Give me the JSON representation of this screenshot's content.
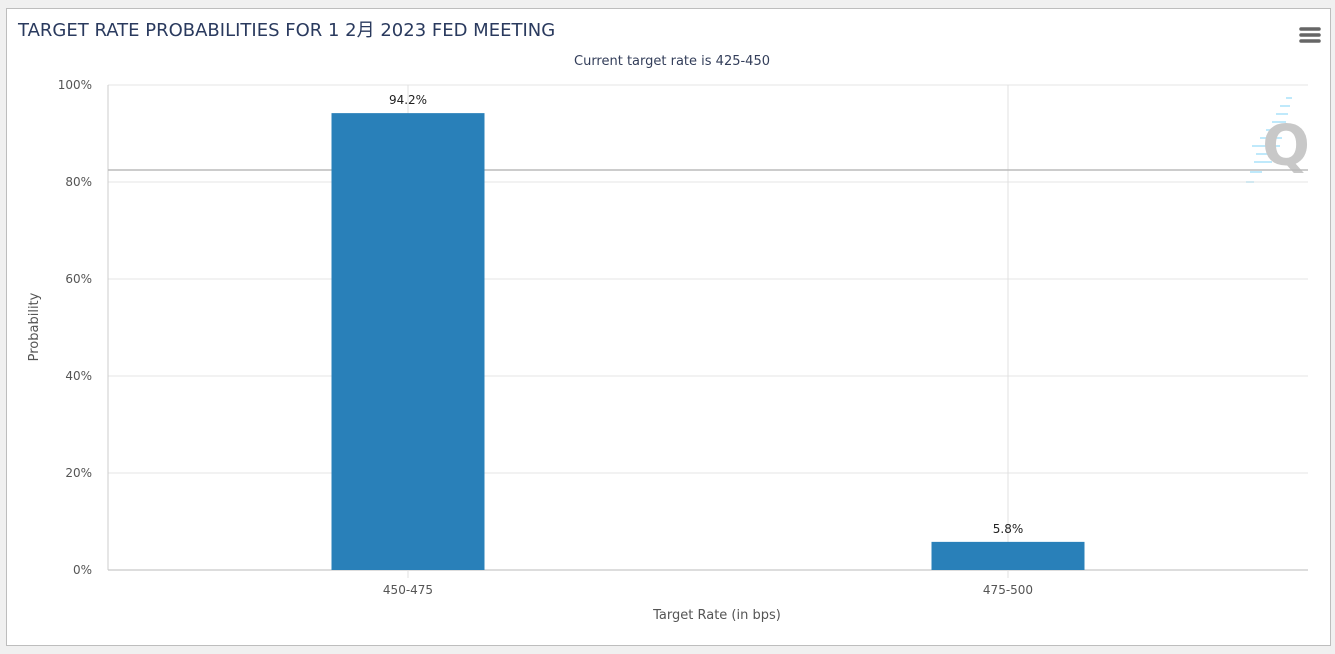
{
  "chart_data": {
    "type": "bar",
    "title": "TARGET RATE PROBABILITIES FOR 1 2月 2023 FED MEETING",
    "subtitle": "Current target rate is 425-450",
    "xlabel": "Target Rate (in bps)",
    "ylabel": "Probability",
    "categories": [
      "450-475",
      "475-500"
    ],
    "values": [
      94.2,
      5.8
    ],
    "data_labels": [
      "94.2%",
      "5.8%"
    ],
    "ylim": [
      0,
      100
    ],
    "yticks": [
      0,
      20,
      40,
      60,
      80,
      100
    ],
    "ytick_labels": [
      "0%",
      "20%",
      "40%",
      "60%",
      "80%",
      "100%"
    ],
    "grid": true,
    "bar_color": "#2980b9"
  },
  "menu_icon": "hamburger-menu-icon",
  "watermark": "Q"
}
